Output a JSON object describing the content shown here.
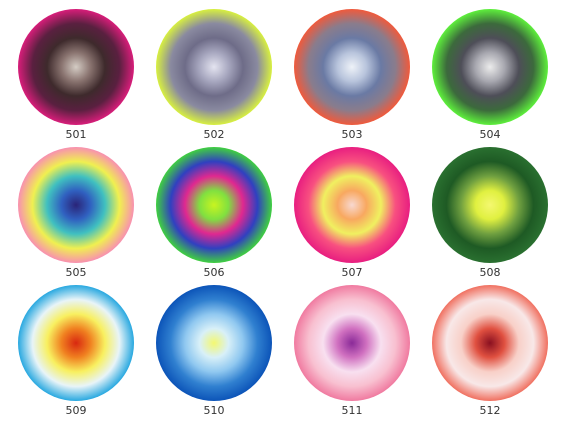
{
  "items": [
    {
      "label": "501"
    },
    {
      "label": "502"
    },
    {
      "label": "503"
    },
    {
      "label": "504"
    },
    {
      "label": "505"
    },
    {
      "label": "506"
    },
    {
      "label": "507"
    },
    {
      "label": "508"
    },
    {
      "label": "509"
    },
    {
      "label": "510"
    },
    {
      "label": "511"
    },
    {
      "label": "512"
    }
  ]
}
